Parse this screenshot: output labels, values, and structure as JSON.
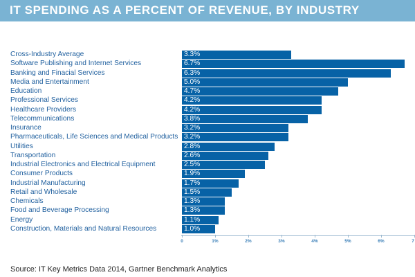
{
  "title": "IT SPENDING AS A PERCENT OF REVENUE, BY INDUSTRY",
  "source": "Source: IT Key Metrics Data 2014, Gartner Benchmark Analytics",
  "colors": {
    "header": "#7ab3d3",
    "bar": "#0762a6",
    "label": "#1f5f9e"
  },
  "chart_data": {
    "type": "bar",
    "orientation": "horizontal",
    "title": "IT SPENDING AS A PERCENT OF REVENUE, BY INDUSTRY",
    "xlabel": "",
    "ylabel": "",
    "xlim": [
      0,
      7
    ],
    "grid": false,
    "categories": [
      "Cross-Industry Average",
      "Software Publishing and Internet Services",
      "Banking and Finacial Services",
      "Media and Entertainment",
      "Education",
      "Professional Services",
      "Healthcare Providers",
      "Telecommunications",
      "Insurance",
      "Pharmaceuticals, Life Sciences and Medical Products",
      "Utilities",
      "Transportation",
      "Industrial Electronics and Electrical Equipment",
      "Consumer Products",
      "Industrial Manufacturing",
      "Retail and Wholesale",
      "Chemicals",
      "Food and Beverage Processing",
      "Energy",
      "Construction, Materials and Natural Resources"
    ],
    "values": [
      3.3,
      6.7,
      6.3,
      5.0,
      4.7,
      4.2,
      4.2,
      3.8,
      3.2,
      3.2,
      2.8,
      2.6,
      2.5,
      1.9,
      1.7,
      1.5,
      1.3,
      1.3,
      1.1,
      1.0
    ],
    "value_labels": [
      "3.3%",
      "6.7%",
      "6.3%",
      "5.0%",
      "4.7%",
      "4.2%",
      "4.2%",
      "3.8%",
      "3.2%",
      "3.2%",
      "2.8%",
      "2.6%",
      "2.5%",
      "1.9%",
      "1.7%",
      "1.5%",
      "1.3%",
      "1.3%",
      "1.1%",
      "1.0%"
    ],
    "x_ticks": [
      0,
      1,
      2,
      3,
      4,
      5,
      6,
      7
    ],
    "x_tick_labels": [
      "0",
      "1%",
      "2%",
      "3%",
      "4%",
      "5%",
      "6%",
      "7"
    ]
  }
}
